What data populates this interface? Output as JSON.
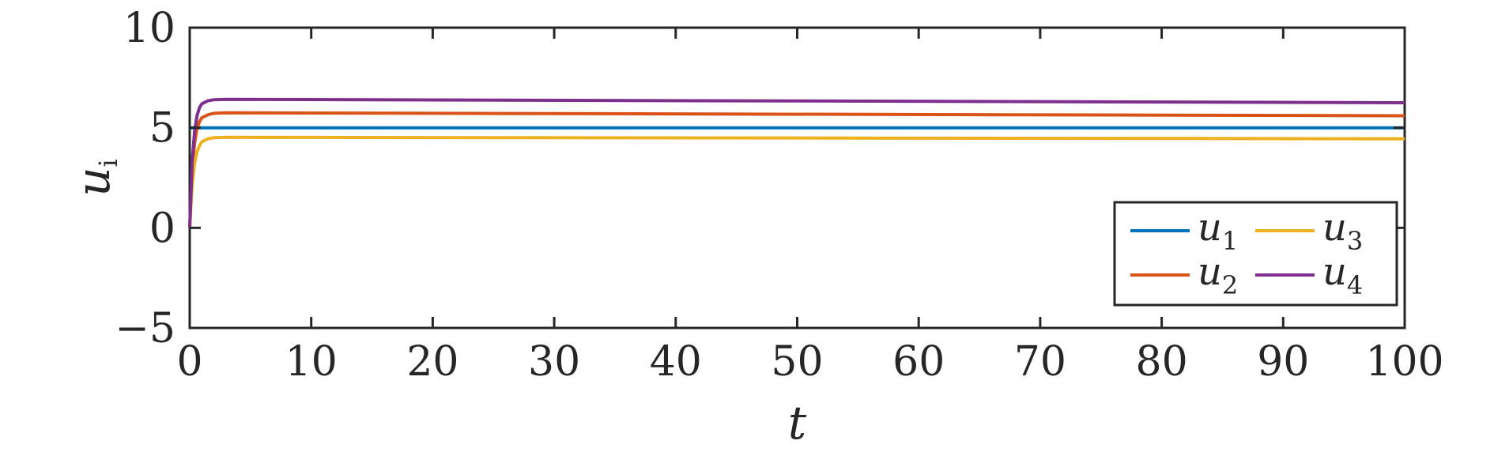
{
  "chart_data": {
    "type": "line",
    "xlabel_main": "t",
    "ylabel_main": "u",
    "ylabel_sub": "i",
    "xlim": [
      0,
      100
    ],
    "ylim": [
      -5,
      10
    ],
    "xticks": [
      0,
      10,
      20,
      30,
      40,
      50,
      60,
      70,
      80,
      90,
      100
    ],
    "yticks": [
      -5,
      0,
      5,
      10
    ],
    "xtick_labels": [
      "0",
      "10",
      "20",
      "30",
      "40",
      "50",
      "60",
      "70",
      "80",
      "90",
      "100"
    ],
    "ytick_labels": [
      "−5",
      "0",
      "5",
      "10"
    ],
    "grid": false,
    "legend_position": "bottom-right",
    "series": [
      {
        "name": "u",
        "subscript": "1",
        "color": "#0072BD",
        "x": [
          0,
          100
        ],
        "y": [
          5.0,
          5.0
        ]
      },
      {
        "name": "u",
        "subscript": "2",
        "color": "#D95319",
        "x": [
          0,
          0.2,
          0.4,
          0.6,
          0.8,
          1.0,
          1.5,
          2.0,
          3.0,
          100
        ],
        "y": [
          0,
          2.9,
          4.2,
          4.95,
          5.3,
          5.5,
          5.65,
          5.72,
          5.75,
          5.6
        ]
      },
      {
        "name": "u",
        "subscript": "3",
        "color": "#EDB120",
        "x": [
          0,
          0.2,
          0.4,
          0.6,
          0.8,
          1.0,
          1.5,
          2.0,
          3.0,
          100
        ],
        "y": [
          0,
          2.1,
          3.2,
          3.8,
          4.1,
          4.3,
          4.45,
          4.5,
          4.52,
          4.45
        ]
      },
      {
        "name": "u",
        "subscript": "4",
        "color": "#7E2F8E",
        "x": [
          0,
          0.2,
          0.4,
          0.6,
          0.8,
          1.0,
          1.5,
          2.0,
          3.0,
          100
        ],
        "y": [
          0,
          3.3,
          4.8,
          5.6,
          6.0,
          6.2,
          6.35,
          6.4,
          6.42,
          6.25
        ]
      }
    ]
  }
}
